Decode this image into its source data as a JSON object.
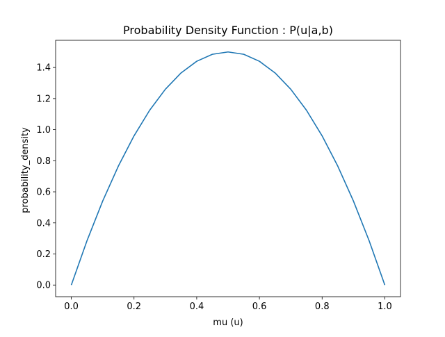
{
  "chart_data": {
    "type": "line",
    "title": "Probability Density Function : P(u|a,b)",
    "xlabel": "mu (u)",
    "ylabel": "probability_density",
    "xlim": [
      -0.05,
      1.05
    ],
    "ylim": [
      -0.075,
      1.575
    ],
    "x_ticks": [
      0.0,
      0.2,
      0.4,
      0.6,
      0.8,
      1.0
    ],
    "x_tick_labels": [
      "0.0",
      "0.2",
      "0.4",
      "0.6",
      "0.8",
      "1.0"
    ],
    "y_ticks": [
      0.0,
      0.2,
      0.4,
      0.6,
      0.8,
      1.0,
      1.2,
      1.4
    ],
    "y_tick_labels": [
      "0.0",
      "0.2",
      "0.4",
      "0.6",
      "0.8",
      "1.0",
      "1.2",
      "1.4"
    ],
    "grid": false,
    "legend": "none",
    "series": [
      {
        "color": "#1f77b4",
        "x": [
          0.0,
          0.05,
          0.1,
          0.15,
          0.2,
          0.25,
          0.3,
          0.35,
          0.4,
          0.45,
          0.5,
          0.55,
          0.6,
          0.65,
          0.7,
          0.75,
          0.8,
          0.85,
          0.9,
          0.95,
          1.0
        ],
        "y": [
          0.0,
          0.285,
          0.54,
          0.765,
          0.96,
          1.125,
          1.26,
          1.365,
          1.44,
          1.485,
          1.5,
          1.485,
          1.44,
          1.365,
          1.26,
          1.125,
          0.96,
          0.765,
          0.54,
          0.285,
          0.0
        ]
      }
    ]
  }
}
